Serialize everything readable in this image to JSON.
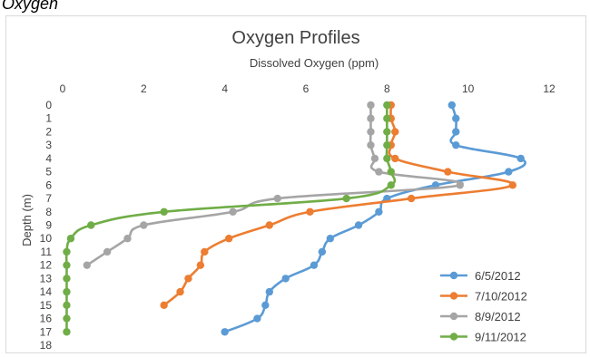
{
  "caption": "Oxygen",
  "colors": {
    "series": [
      "#5b9bd5",
      "#ed7d31",
      "#a5a5a5",
      "#70ad47"
    ],
    "grid": "#d9d9d9",
    "text": "#404040"
  },
  "chart_data": {
    "type": "line",
    "title": "Oxygen Profiles",
    "xlabel": "Dissolved Oxygen (ppm)",
    "ylabel": "Depth (m)",
    "xlim": [
      0,
      12
    ],
    "ylim": [
      0,
      18
    ],
    "y_inverted": true,
    "x_axis_position": "top",
    "x_ticks": [
      "0",
      "2",
      "4",
      "6",
      "8",
      "10",
      "12"
    ],
    "y_ticks": [
      "0",
      "1",
      "2",
      "3",
      "4",
      "5",
      "6",
      "7",
      "8",
      "9",
      "10",
      "11",
      "12",
      "13",
      "14",
      "15",
      "16",
      "17",
      "18"
    ],
    "grid": false,
    "legend_position": "bottom-right",
    "series": [
      {
        "name": "6/5/2012",
        "points": [
          [
            9.6,
            0
          ],
          [
            9.7,
            1
          ],
          [
            9.7,
            2
          ],
          [
            9.7,
            3
          ],
          [
            11.3,
            4
          ],
          [
            11.0,
            5
          ],
          [
            9.2,
            6
          ],
          [
            8.0,
            7
          ],
          [
            7.8,
            8
          ],
          [
            7.3,
            9
          ],
          [
            6.6,
            10
          ],
          [
            6.4,
            11
          ],
          [
            6.2,
            12
          ],
          [
            5.5,
            13
          ],
          [
            5.1,
            14
          ],
          [
            5.0,
            15
          ],
          [
            4.8,
            16
          ],
          [
            4.0,
            17
          ]
        ]
      },
      {
        "name": "7/10/2012",
        "points": [
          [
            8.1,
            0
          ],
          [
            8.1,
            1
          ],
          [
            8.2,
            2
          ],
          [
            8.1,
            3
          ],
          [
            8.2,
            4
          ],
          [
            9.5,
            5
          ],
          [
            11.1,
            6
          ],
          [
            8.6,
            7
          ],
          [
            6.1,
            8
          ],
          [
            5.1,
            9
          ],
          [
            4.1,
            10
          ],
          [
            3.5,
            11
          ],
          [
            3.4,
            12
          ],
          [
            3.1,
            13
          ],
          [
            2.9,
            14
          ],
          [
            2.5,
            15
          ]
        ]
      },
      {
        "name": "8/9/2012",
        "points": [
          [
            7.6,
            0
          ],
          [
            7.6,
            1
          ],
          [
            7.6,
            2
          ],
          [
            7.6,
            3
          ],
          [
            7.7,
            4
          ],
          [
            7.8,
            5
          ],
          [
            9.8,
            6
          ],
          [
            5.3,
            7
          ],
          [
            4.2,
            8
          ],
          [
            2.0,
            9
          ],
          [
            1.6,
            10
          ],
          [
            1.1,
            11
          ],
          [
            0.6,
            12
          ]
        ]
      },
      {
        "name": "9/11/2012",
        "points": [
          [
            8.0,
            0
          ],
          [
            8.0,
            1
          ],
          [
            8.0,
            2
          ],
          [
            8.0,
            3
          ],
          [
            8.0,
            4
          ],
          [
            8.1,
            5
          ],
          [
            8.1,
            6
          ],
          [
            7.0,
            7
          ],
          [
            2.5,
            8
          ],
          [
            0.7,
            9
          ],
          [
            0.2,
            10
          ],
          [
            0.1,
            11
          ],
          [
            0.1,
            12
          ],
          [
            0.1,
            13
          ],
          [
            0.1,
            14
          ],
          [
            0.1,
            15
          ],
          [
            0.1,
            16
          ],
          [
            0.1,
            17
          ]
        ]
      }
    ]
  }
}
